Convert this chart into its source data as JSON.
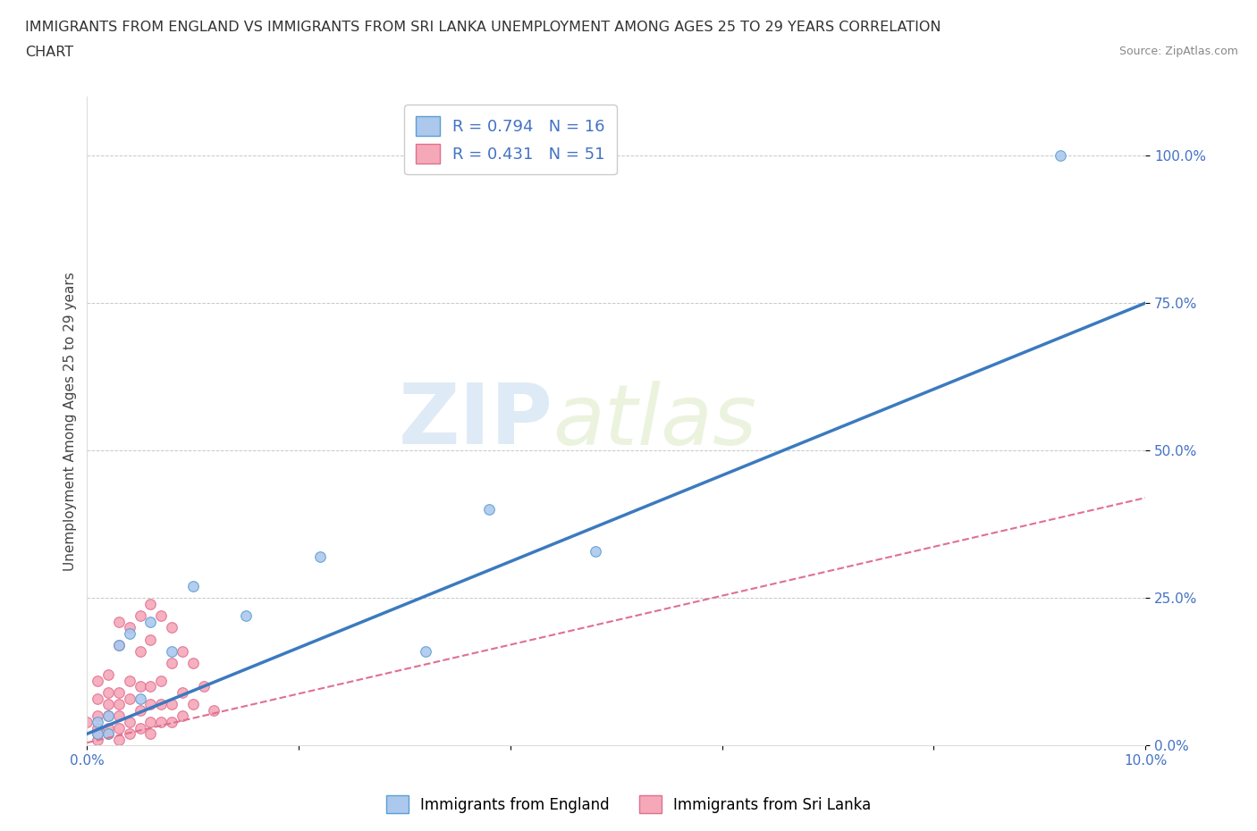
{
  "title_line1": "IMMIGRANTS FROM ENGLAND VS IMMIGRANTS FROM SRI LANKA UNEMPLOYMENT AMONG AGES 25 TO 29 YEARS CORRELATION",
  "title_line2": "CHART",
  "source_text": "Source: ZipAtlas.com",
  "ylabel": "Unemployment Among Ages 25 to 29 years",
  "xlim": [
    0.0,
    0.1
  ],
  "ylim": [
    0.0,
    1.1
  ],
  "yticks": [
    0.0,
    0.25,
    0.5,
    0.75,
    1.0
  ],
  "ytick_labels": [
    "0.0%",
    "25.0%",
    "50.0%",
    "75.0%",
    "100.0%"
  ],
  "xticks": [
    0.0,
    0.02,
    0.04,
    0.06,
    0.08,
    0.1
  ],
  "xtick_labels": [
    "0.0%",
    "",
    "",
    "",
    "",
    "10.0%"
  ],
  "watermark_zip": "ZIP",
  "watermark_atlas": "atlas",
  "england_color": "#adc8ed",
  "england_edge_color": "#5a9fd4",
  "srilanka_color": "#f5a8b8",
  "srilanka_edge_color": "#e07090",
  "england_line_color": "#3b7abf",
  "srilanka_line_color": "#e07090",
  "R_england": 0.794,
  "N_england": 16,
  "R_srilanka": 0.431,
  "N_srilanka": 51,
  "england_line_x0": 0.0,
  "england_line_y0": 0.02,
  "england_line_x1": 0.1,
  "england_line_y1": 0.75,
  "srilanka_line_x0": 0.0,
  "srilanka_line_y0": 0.005,
  "srilanka_line_x1": 0.1,
  "srilanka_line_y1": 0.42,
  "england_x": [
    0.001,
    0.001,
    0.002,
    0.002,
    0.003,
    0.004,
    0.005,
    0.006,
    0.008,
    0.01,
    0.015,
    0.022,
    0.032,
    0.038,
    0.048,
    0.092
  ],
  "england_y": [
    0.02,
    0.04,
    0.02,
    0.05,
    0.17,
    0.19,
    0.08,
    0.21,
    0.16,
    0.27,
    0.22,
    0.32,
    0.16,
    0.4,
    0.33,
    1.0
  ],
  "srilanka_x": [
    0.0,
    0.001,
    0.001,
    0.001,
    0.001,
    0.001,
    0.001,
    0.002,
    0.002,
    0.002,
    0.002,
    0.002,
    0.002,
    0.003,
    0.003,
    0.003,
    0.003,
    0.003,
    0.003,
    0.003,
    0.004,
    0.004,
    0.004,
    0.004,
    0.004,
    0.005,
    0.005,
    0.005,
    0.005,
    0.005,
    0.006,
    0.006,
    0.006,
    0.006,
    0.006,
    0.006,
    0.007,
    0.007,
    0.007,
    0.007,
    0.008,
    0.008,
    0.008,
    0.008,
    0.009,
    0.009,
    0.009,
    0.01,
    0.01,
    0.011,
    0.012
  ],
  "srilanka_y": [
    0.04,
    0.01,
    0.02,
    0.03,
    0.05,
    0.08,
    0.11,
    0.02,
    0.03,
    0.05,
    0.07,
    0.09,
    0.12,
    0.01,
    0.03,
    0.05,
    0.07,
    0.09,
    0.17,
    0.21,
    0.02,
    0.04,
    0.08,
    0.11,
    0.2,
    0.03,
    0.06,
    0.1,
    0.16,
    0.22,
    0.02,
    0.04,
    0.07,
    0.1,
    0.18,
    0.24,
    0.04,
    0.07,
    0.11,
    0.22,
    0.04,
    0.07,
    0.14,
    0.2,
    0.05,
    0.09,
    0.16,
    0.07,
    0.14,
    0.1,
    0.06
  ],
  "background_color": "#ffffff",
  "grid_color": "#c8c8c8",
  "marker_size": 70,
  "tick_color": "#4472c4",
  "legend_label_england": "Immigrants from England",
  "legend_label_srilanka": "Immigrants from Sri Lanka"
}
